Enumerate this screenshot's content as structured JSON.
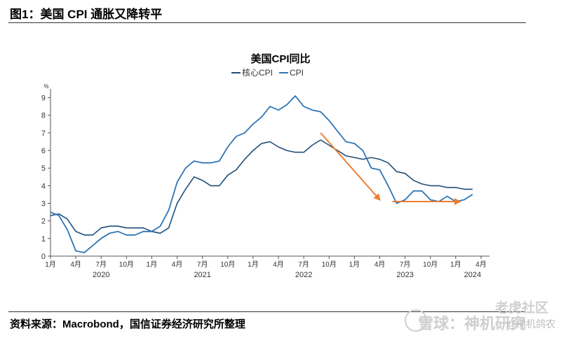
{
  "header": {
    "title": "图1：美国 CPI 通胀又降转平"
  },
  "footer": {
    "source": "资料来源：Macrobond，国信证券经济研究所整理"
  },
  "watermarks": {
    "tiger": "老虎社区",
    "xueqiu": "雪球：神机研究",
    "account": "@神机鸽农"
  },
  "colors": {
    "core": "#1f4e79",
    "cpi": "#2e75b6",
    "arrow": "#ed7d31",
    "axis": "#555555"
  },
  "chart_data": {
    "type": "line",
    "title": "美国CPI同比",
    "ylabel": "%",
    "xlabel": "",
    "ylim": [
      0,
      9.5
    ],
    "yticks": [
      0,
      1,
      2,
      3,
      4,
      5,
      6,
      7,
      8,
      9
    ],
    "xlim": [
      0,
      52
    ],
    "xticks": [
      {
        "m": 0,
        "label": "1月"
      },
      {
        "m": 3,
        "label": "4月"
      },
      {
        "m": 6,
        "label": "7月"
      },
      {
        "m": 9,
        "label": "10月"
      },
      {
        "m": 12,
        "label": "1月"
      },
      {
        "m": 15,
        "label": "4月"
      },
      {
        "m": 18,
        "label": "7月"
      },
      {
        "m": 21,
        "label": "10月"
      },
      {
        "m": 24,
        "label": "1月"
      },
      {
        "m": 27,
        "label": "4月"
      },
      {
        "m": 30,
        "label": "7月"
      },
      {
        "m": 33,
        "label": "10月"
      },
      {
        "m": 36,
        "label": "1月"
      },
      {
        "m": 39,
        "label": "4月"
      },
      {
        "m": 42,
        "label": "7月"
      },
      {
        "m": 45,
        "label": "10月"
      },
      {
        "m": 48,
        "label": "1月"
      },
      {
        "m": 51,
        "label": "4月"
      }
    ],
    "years": [
      {
        "m": 6,
        "label": "2020"
      },
      {
        "m": 18,
        "label": "2021"
      },
      {
        "m": 30,
        "label": "2022"
      },
      {
        "m": 42,
        "label": "2023"
      },
      {
        "m": 50,
        "label": "2024"
      }
    ],
    "legend": [
      "核心CPI",
      "CPI"
    ],
    "series": [
      {
        "name": "核心CPI",
        "values": [
          2.3,
          2.4,
          2.1,
          1.4,
          1.2,
          1.2,
          1.6,
          1.7,
          1.7,
          1.6,
          1.6,
          1.6,
          1.4,
          1.3,
          1.6,
          3.0,
          3.8,
          4.5,
          4.3,
          4.0,
          4.0,
          4.6,
          4.9,
          5.5,
          6.0,
          6.4,
          6.5,
          6.2,
          6.0,
          5.9,
          5.9,
          6.3,
          6.6,
          6.3,
          6.0,
          5.7,
          5.6,
          5.5,
          5.6,
          5.5,
          5.3,
          4.8,
          4.7,
          4.3,
          4.1,
          4.0,
          4.0,
          3.9,
          3.9,
          3.8,
          3.8
        ]
      },
      {
        "name": "CPI",
        "values": [
          2.5,
          2.3,
          1.5,
          0.3,
          0.2,
          0.6,
          1.0,
          1.3,
          1.4,
          1.2,
          1.2,
          1.4,
          1.4,
          1.7,
          2.6,
          4.2,
          5.0,
          5.4,
          5.3,
          5.3,
          5.4,
          6.2,
          6.8,
          7.0,
          7.5,
          7.9,
          8.5,
          8.3,
          8.6,
          9.1,
          8.5,
          8.3,
          8.2,
          7.7,
          7.1,
          6.5,
          6.4,
          6.0,
          5.0,
          4.9,
          4.0,
          3.0,
          3.2,
          3.7,
          3.7,
          3.2,
          3.1,
          3.4,
          3.1,
          3.2,
          3.5
        ]
      }
    ],
    "annotations": [
      {
        "type": "arrow",
        "from": [
          32,
          7.0
        ],
        "to": [
          39,
          3.2
        ],
        "color": "#ed7d31"
      },
      {
        "type": "arrow",
        "from": [
          40.5,
          3.1
        ],
        "to": [
          48.5,
          3.1
        ],
        "color": "#ed7d31"
      }
    ]
  }
}
